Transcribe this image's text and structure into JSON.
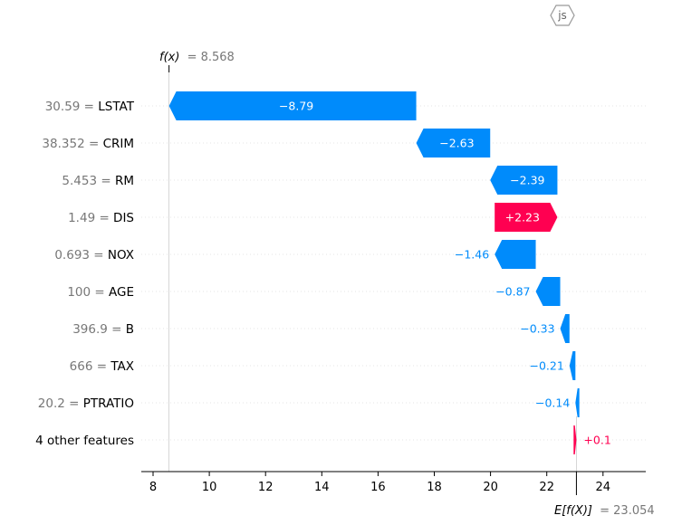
{
  "badge": {
    "label": "js"
  },
  "header": {
    "fx_label": "f(x)",
    "fx_value": "= 8.568"
  },
  "footer": {
    "efx_label": "E[f(X)]",
    "efx_value": "= 23.054"
  },
  "colors": {
    "negative": "#008bfb",
    "positive": "#ff0051",
    "text": "#000000",
    "muted": "#777777"
  },
  "chart_data": {
    "type": "waterfall",
    "fx": 8.568,
    "base_value": 23.054,
    "x_ticks": [
      8,
      10,
      12,
      14,
      16,
      18,
      20,
      22,
      24
    ],
    "xlim": [
      7.4,
      25.4
    ],
    "rows": [
      {
        "value_label": "30.59 =",
        "feature": "LSTAT",
        "left": 8.568,
        "right": 17.358,
        "contribution": -8.79,
        "label": "−8.79"
      },
      {
        "value_label": "38.352 =",
        "feature": "CRIM",
        "left": 17.358,
        "right": 19.988,
        "contribution": -2.63,
        "label": "−2.63"
      },
      {
        "value_label": "5.453 =",
        "feature": "RM",
        "left": 19.988,
        "right": 22.378,
        "contribution": -2.39,
        "label": "−2.39"
      },
      {
        "value_label": "1.49 =",
        "feature": "DIS",
        "left": 20.148,
        "right": 22.378,
        "contribution": 2.23,
        "label": "+2.23"
      },
      {
        "value_label": "0.693 =",
        "feature": "NOX",
        "left": 20.148,
        "right": 21.608,
        "contribution": -1.46,
        "label": "−1.46"
      },
      {
        "value_label": "100 =",
        "feature": "AGE",
        "left": 21.608,
        "right": 22.478,
        "contribution": -0.87,
        "label": "−0.87"
      },
      {
        "value_label": "396.9 =",
        "feature": "B",
        "left": 22.478,
        "right": 22.808,
        "contribution": -0.33,
        "label": "−0.33"
      },
      {
        "value_label": "666 =",
        "feature": "TAX",
        "left": 22.808,
        "right": 23.018,
        "contribution": -0.21,
        "label": "−0.21"
      },
      {
        "value_label": "20.2 =",
        "feature": "PTRATIO",
        "left": 23.018,
        "right": 23.158,
        "contribution": -0.14,
        "label": "−0.14"
      },
      {
        "value_label": "",
        "feature": "4 other features",
        "left": 22.954,
        "right": 23.054,
        "contribution": 0.1,
        "label": "+0.1"
      }
    ]
  }
}
